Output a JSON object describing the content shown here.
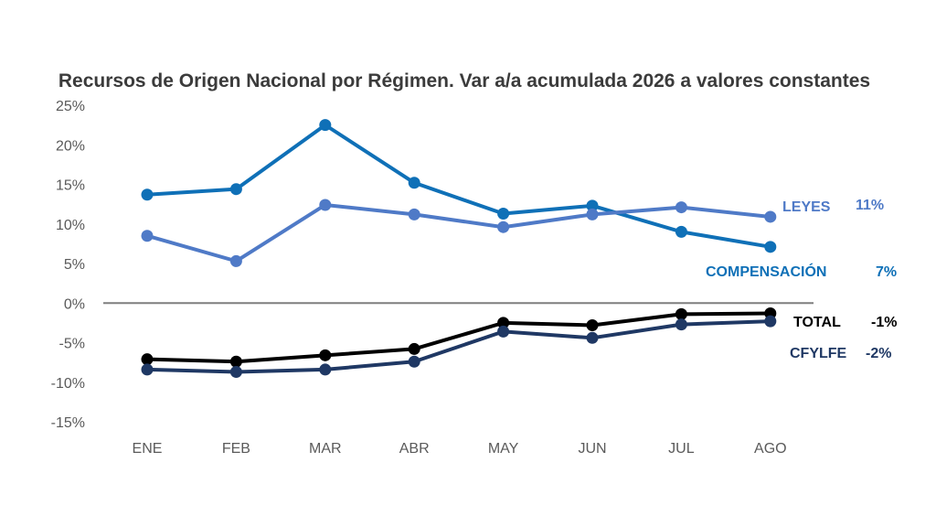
{
  "chart_data": {
    "type": "line",
    "title": "Recursos de Origen Nacional por Régimen. Var a/a acumulada 2026 a valores constantes",
    "xlabel": "",
    "ylabel": "",
    "categories": [
      "ENE",
      "FEB",
      "MAR",
      "ABR",
      "MAY",
      "JUN",
      "JUL",
      "AGO"
    ],
    "ylim": [
      -15,
      25
    ],
    "yticks": [
      "25%",
      "20%",
      "15%",
      "10%",
      "5%",
      "0%",
      "-5%",
      "-10%",
      "-15%"
    ],
    "grid": false,
    "zero_line": true,
    "series": [
      {
        "name": "COMPENSACIÓN",
        "end_label": "7%",
        "color": "#0f70b7",
        "values": [
          13.7,
          14.4,
          22.5,
          15.2,
          11.3,
          12.3,
          9.0,
          7.1
        ]
      },
      {
        "name": "LEYES",
        "end_label": "11%",
        "color": "#4f7ac7",
        "values": [
          8.5,
          5.3,
          12.4,
          11.2,
          9.6,
          11.2,
          12.1,
          10.9
        ]
      },
      {
        "name": "TOTAL",
        "end_label": "-1%",
        "color": "#000000",
        "values": [
          -7.1,
          -7.4,
          -6.6,
          -5.8,
          -2.5,
          -2.8,
          -1.4,
          -1.3
        ]
      },
      {
        "name": "CFYLFE",
        "end_label": "-2%",
        "color": "#1f3864",
        "values": [
          -8.4,
          -8.7,
          -8.4,
          -7.4,
          -3.6,
          -4.4,
          -2.7,
          -2.3
        ]
      }
    ]
  }
}
